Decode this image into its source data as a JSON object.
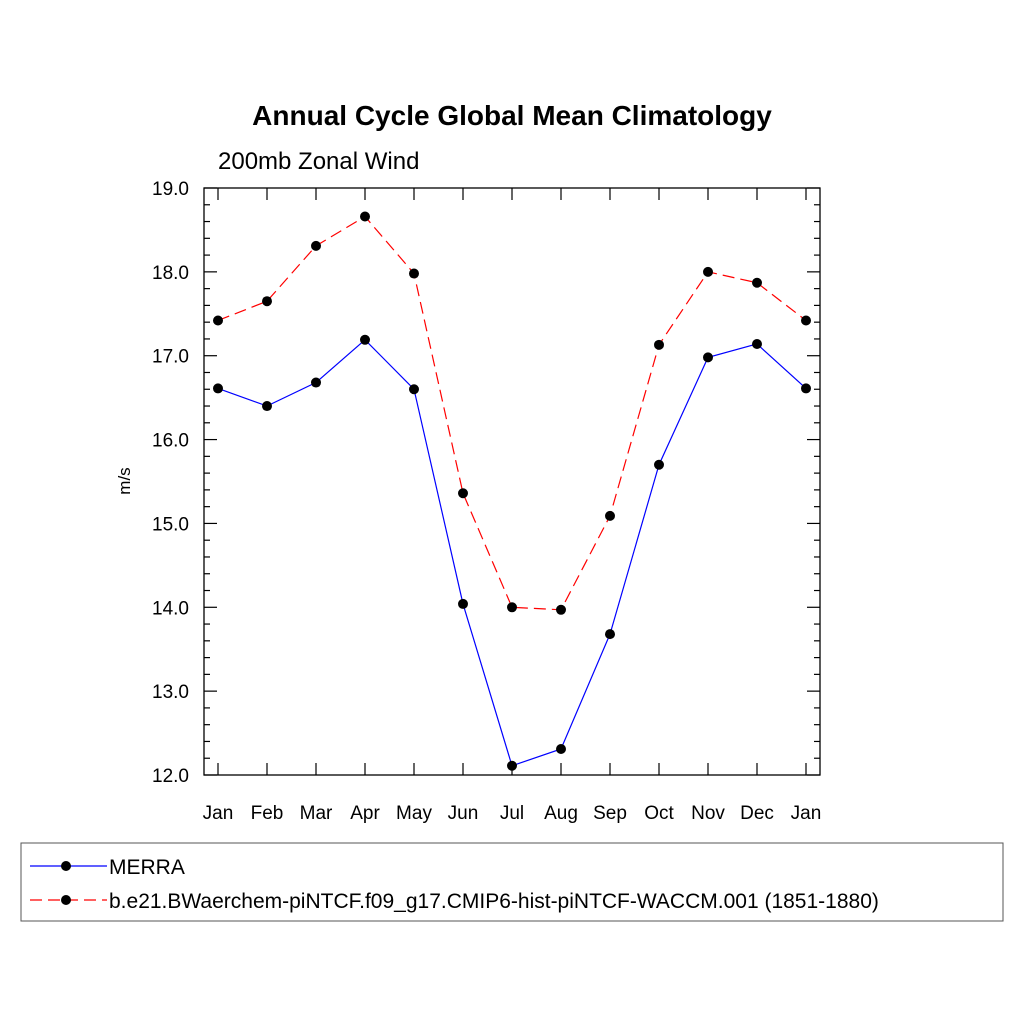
{
  "chart_data": {
    "type": "line",
    "title": "Annual Cycle Global Mean Climatology",
    "subtitle": "200mb Zonal Wind",
    "ylabel": "m/s",
    "xlabel": "",
    "categories": [
      "Jan",
      "Feb",
      "Mar",
      "Apr",
      "May",
      "Jun",
      "Jul",
      "Aug",
      "Sep",
      "Oct",
      "Nov",
      "Dec",
      "Jan"
    ],
    "ylim": [
      12.0,
      19.0
    ],
    "ytick_labels": [
      "12.0",
      "13.0",
      "14.0",
      "15.0",
      "16.0",
      "17.0",
      "18.0",
      "19.0"
    ],
    "grid": false,
    "legend_position": "bottom",
    "series": [
      {
        "name": "MERRA",
        "color": "#0000ff",
        "dash": "solid",
        "marker": "filled-circle",
        "values": [
          16.61,
          16.4,
          16.68,
          17.19,
          16.6,
          14.04,
          12.11,
          12.31,
          13.68,
          15.7,
          16.98,
          17.14,
          16.61
        ]
      },
      {
        "name": "b.e21.BWaerchem-piNTCF.f09_g17.CMIP6-hist-piNTCF-WACCM.001 (1851-1880)",
        "color": "#ff0000",
        "dash": "dashed",
        "marker": "filled-circle",
        "values": [
          17.42,
          17.65,
          18.31,
          18.66,
          17.98,
          15.36,
          14.0,
          13.97,
          15.09,
          17.13,
          18.0,
          17.87,
          17.42
        ]
      }
    ]
  }
}
